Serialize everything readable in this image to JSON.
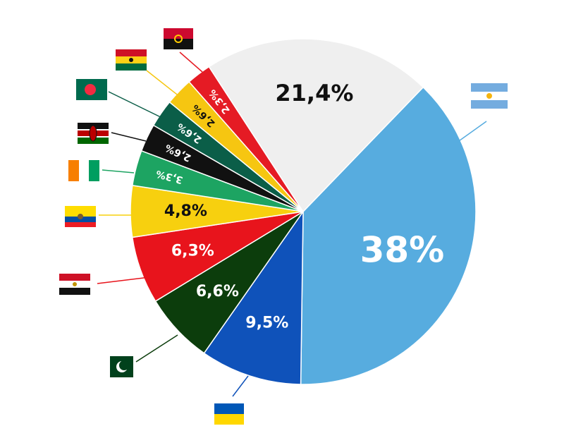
{
  "chart_data": {
    "type": "pie",
    "values": [
      38,
      9.5,
      6.6,
      6.3,
      4.8,
      3.3,
      2.6,
      2.6,
      2.6,
      2.3,
      21.4
    ],
    "value_labels": [
      "38%",
      "9,5%",
      "6,6%",
      "6,3%",
      "4,8%",
      "3,3%",
      "2,6%",
      "2,6%",
      "2,6%",
      "2,3%",
      "21,4%"
    ],
    "colors": [
      "#57acdf",
      "#0f52ba",
      "#0c3d0c",
      "#e8141c",
      "#f7d00f",
      "#1da462",
      "#111111",
      "#0b5e48",
      "#f6c611",
      "#e51b24",
      "#efefef"
    ]
  }
}
